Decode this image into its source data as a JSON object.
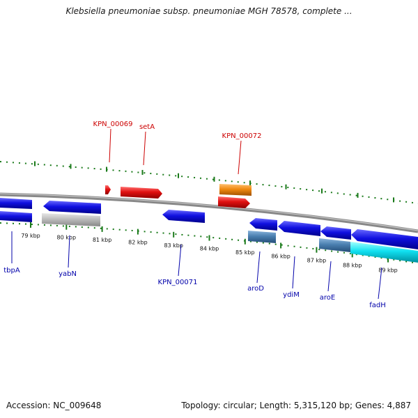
{
  "title": "Klebsiella pneumoniae subsp. pneumoniae MGH 78578, complete ...",
  "footer": {
    "accession": "Accession: NC_009648",
    "summary": "Topology: circular; Length: 5,315,120 bp; Genes: 4,887"
  },
  "colors": {
    "backbone": "#8a8a8a",
    "ticks": "#1a7a1a",
    "gene_blue": "#1010e0",
    "gene_red": "#e01010",
    "gene_orange": "#f08a10",
    "gene_steel": "#4a7fb0",
    "gene_gray": "#b8b8b8",
    "gene_cyan": "#10e0f0",
    "label_red": "#cc0000",
    "label_blue": "#0000aa"
  },
  "scale_labels": [
    "79 kbp",
    "80 kbp",
    "81 kbp",
    "82 kbp",
    "83 kbp",
    "84 kbp",
    "85 kbp",
    "86 kbp",
    "87 kbp",
    "88 kbp",
    "89 kbp"
  ],
  "top_labels": [
    "KPN_00069",
    "setA",
    "KPN_00072"
  ],
  "bottom_labels": [
    "tbpA",
    "yabN",
    "KPN_00071",
    "aroD",
    "ydiM",
    "aroE",
    "fadH"
  ]
}
